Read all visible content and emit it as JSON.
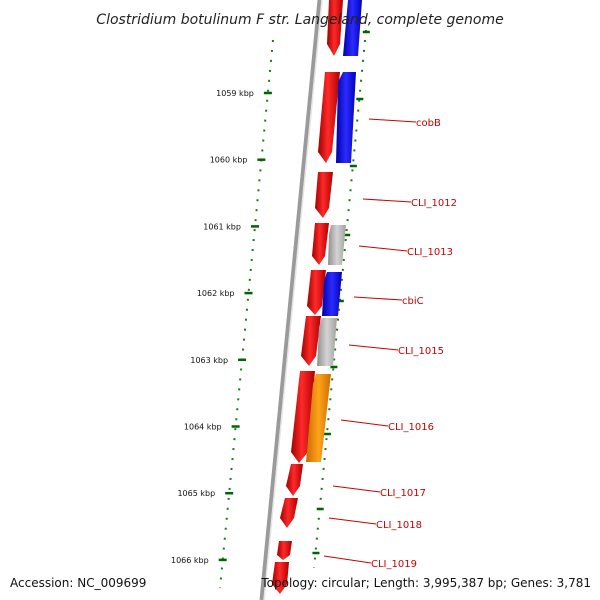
{
  "title": "Clostridium botulinum F str. Langeland, complete genome",
  "footer": {
    "accession": "Accession: NC_009699",
    "topology": "Topology: circular; Length: 3,995,387 bp; Genes: 3,781"
  },
  "colors": {
    "backbone": "#808080",
    "forward_genes": "#ff0000",
    "reverse_blue": "#0000ff",
    "reverse_gray": "#bfbfbf",
    "reverse_orange": "#ff8c00",
    "ticks": "#006400",
    "label": "#cc0000"
  },
  "kbp_ticks": [
    {
      "label": "1059 kbp",
      "kbp": 1059
    },
    {
      "label": "1060 kbp",
      "kbp": 1060
    },
    {
      "label": "1061 kbp",
      "kbp": 1061
    },
    {
      "label": "1062 kbp",
      "kbp": 1062
    },
    {
      "label": "1063 kbp",
      "kbp": 1063
    },
    {
      "label": "1064 kbp",
      "kbp": 1064
    },
    {
      "label": "1065 kbp",
      "kbp": 1065
    },
    {
      "label": "1066 kbp",
      "kbp": 1066
    }
  ],
  "gene_labels": [
    "cobB",
    "CLI_1012",
    "CLI_1013",
    "cbiC",
    "CLI_1015",
    "CLI_1016",
    "CLI_1017",
    "CLI_1018",
    "CLI_1019"
  ]
}
